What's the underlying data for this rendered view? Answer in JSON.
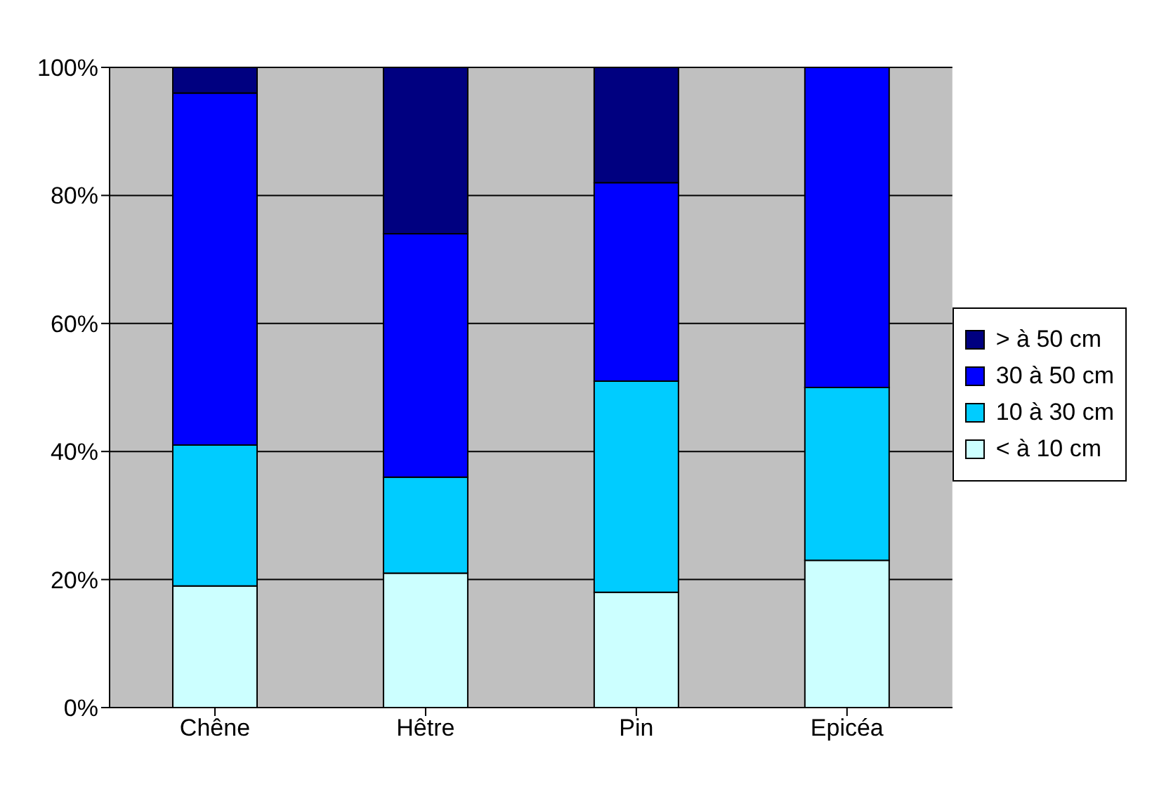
{
  "chart_data": {
    "type": "bar",
    "stacked": true,
    "categories": [
      "Chêne",
      "Hêtre",
      "Pin",
      "Epicéa"
    ],
    "series": [
      {
        "name": "< à 10 cm",
        "color": "#ccffff",
        "values": [
          19,
          21,
          18,
          23
        ]
      },
      {
        "name": "10 à 30 cm",
        "color": "#00ccff",
        "values": [
          22,
          15,
          33,
          27
        ]
      },
      {
        "name": "30 à 50 cm",
        "color": "#0000ff",
        "values": [
          55,
          38,
          31,
          50
        ]
      },
      {
        "name": "> à 50 cm",
        "color": "#000080",
        "values": [
          4,
          26,
          18,
          0
        ]
      }
    ],
    "ylim": [
      0,
      100
    ],
    "yticks": [
      {
        "value": 0,
        "label": "0%"
      },
      {
        "value": 20,
        "label": "20%"
      },
      {
        "value": 40,
        "label": "40%"
      },
      {
        "value": 60,
        "label": "60%"
      },
      {
        "value": 80,
        "label": "80%"
      },
      {
        "value": 100,
        "label": "100%"
      }
    ],
    "grid": "y",
    "legend": "right"
  }
}
